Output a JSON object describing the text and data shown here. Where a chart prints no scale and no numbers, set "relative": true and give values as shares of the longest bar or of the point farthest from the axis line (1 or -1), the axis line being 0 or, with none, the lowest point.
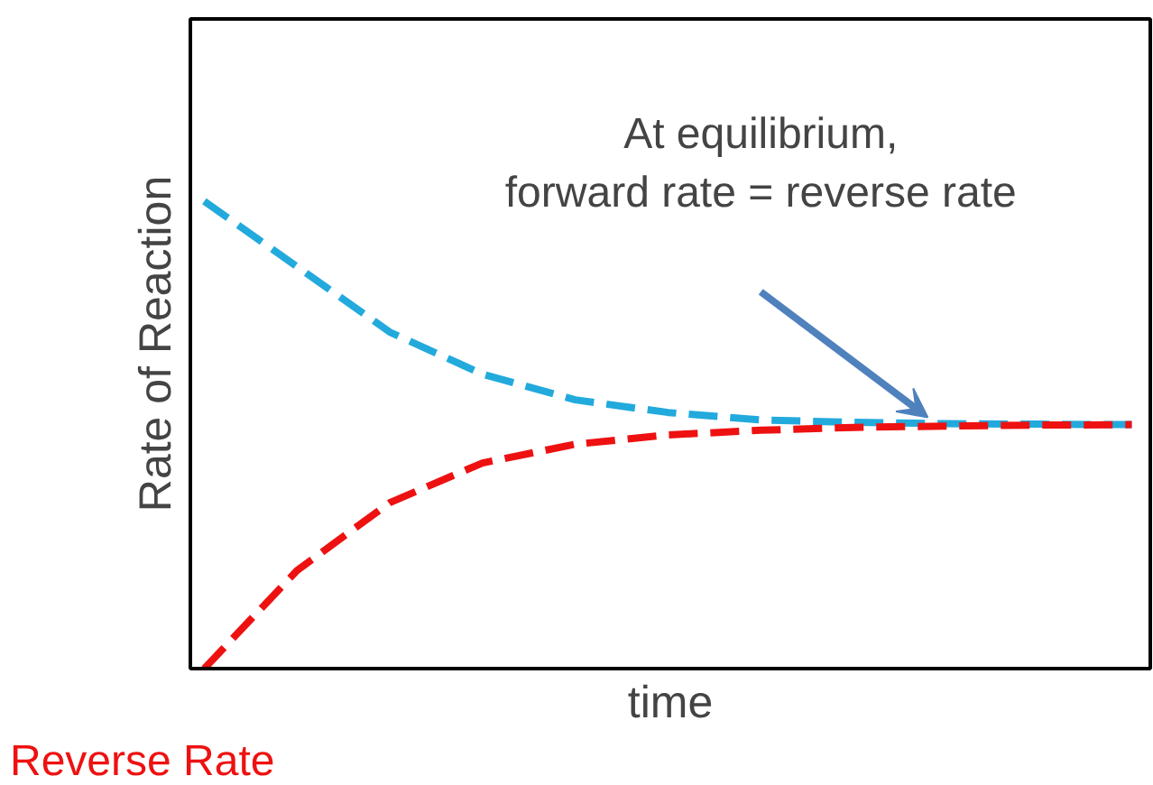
{
  "chart_data": {
    "type": "line",
    "relative": true,
    "xlabel": "time",
    "ylabel": "Rate of Reaction",
    "categories": [
      null,
      null,
      null,
      null,
      null,
      null,
      null,
      null,
      null,
      null,
      null
    ],
    "series": [
      {
        "color": "#22aadd",
        "values": [
          1,
          0.86,
          0.72,
          0.63,
          0.575,
          0.548,
          0.532,
          0.527,
          0.524,
          0.523,
          0.522
        ]
      },
      {
        "name": "Reverse Rate",
        "color": "#ee1111",
        "values": [
          0,
          0.21,
          0.355,
          0.44,
          0.48,
          0.5,
          0.51,
          0.516,
          0.519,
          0.521,
          0.522
        ]
      }
    ],
    "annotations": [
      "At equilibrium,\nforward rate = reverse rate"
    ],
    "line_style": "dashed"
  }
}
